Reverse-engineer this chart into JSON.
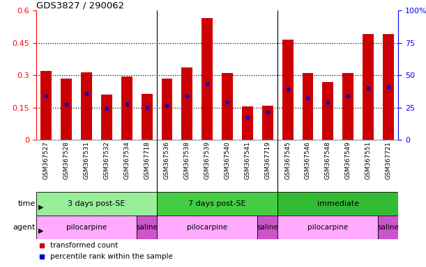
{
  "title": "GDS3827 / 290062",
  "samples": [
    "GSM367527",
    "GSM367528",
    "GSM367531",
    "GSM367532",
    "GSM367534",
    "GSM367718",
    "GSM367536",
    "GSM367538",
    "GSM367539",
    "GSM367540",
    "GSM367541",
    "GSM367719",
    "GSM367545",
    "GSM367546",
    "GSM367548",
    "GSM367549",
    "GSM367551",
    "GSM367721"
  ],
  "transformed_count": [
    0.32,
    0.285,
    0.315,
    0.21,
    0.295,
    0.215,
    0.285,
    0.335,
    0.565,
    0.31,
    0.155,
    0.16,
    0.465,
    0.31,
    0.27,
    0.31,
    0.49,
    0.49
  ],
  "percentile_rank": [
    0.205,
    0.165,
    0.215,
    0.145,
    0.165,
    0.15,
    0.16,
    0.205,
    0.26,
    0.175,
    0.105,
    0.13,
    0.235,
    0.195,
    0.175,
    0.205,
    0.24,
    0.245
  ],
  "ylim_left": [
    0.0,
    0.6
  ],
  "ylim_right": [
    0,
    100
  ],
  "yticks_left": [
    0,
    0.15,
    0.3,
    0.45,
    0.6
  ],
  "yticks_right": [
    0,
    25,
    50,
    75,
    100
  ],
  "bar_color": "#cc0000",
  "percentile_color": "#0000cc",
  "grid_color": "#000000",
  "bg_color": "#ffffff",
  "sample_bg": "#d8d8d8",
  "time_groups": [
    {
      "label": "3 days post-SE",
      "start": 0,
      "end": 6,
      "color": "#99ee99"
    },
    {
      "label": "7 days post-SE",
      "start": 6,
      "end": 12,
      "color": "#44cc44"
    },
    {
      "label": "immediate",
      "start": 12,
      "end": 18,
      "color": "#33bb33"
    }
  ],
  "agent_groups": [
    {
      "label": "pilocarpine",
      "start": 0,
      "end": 5,
      "color": "#ffaaff"
    },
    {
      "label": "saline",
      "start": 5,
      "end": 6,
      "color": "#cc55cc"
    },
    {
      "label": "pilocarpine",
      "start": 6,
      "end": 11,
      "color": "#ffaaff"
    },
    {
      "label": "saline",
      "start": 11,
      "end": 12,
      "color": "#cc55cc"
    },
    {
      "label": "pilocarpine",
      "start": 12,
      "end": 17,
      "color": "#ffaaff"
    },
    {
      "label": "saline",
      "start": 17,
      "end": 18,
      "color": "#cc55cc"
    }
  ],
  "legend": [
    {
      "label": "transformed count",
      "color": "#cc0000"
    },
    {
      "label": "percentile rank within the sample",
      "color": "#0000cc"
    }
  ],
  "group_boundaries": [
    5.5,
    11.5
  ]
}
